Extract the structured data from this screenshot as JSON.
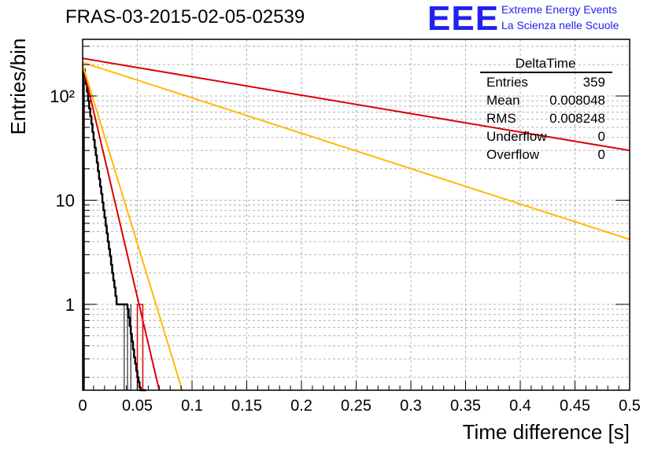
{
  "title": "FRAS-03-2015-02-05-02539",
  "logo": {
    "text": "EEE",
    "line1": "Extreme Energy Events",
    "line2": "La Scienza nelle Scuole",
    "color": "#2222ee"
  },
  "stats_box": {
    "name": "DeltaTime",
    "rows": [
      {
        "label": "Entries",
        "value": "359"
      },
      {
        "label": "Mean",
        "value": "0.008048"
      },
      {
        "label": "RMS",
        "value": "0.008248"
      },
      {
        "label": "Underflow",
        "value": "0"
      },
      {
        "label": "Overflow",
        "value": "0"
      }
    ]
  },
  "chart_data": {
    "type": "line",
    "title": "FRAS-03-2015-02-05-02539",
    "xlabel": "Time difference [s]",
    "ylabel": "Entries/bin",
    "xlim": [
      0,
      0.5
    ],
    "ylim": [
      0.15,
      350
    ],
    "yscale": "log",
    "grid": true,
    "x_ticks": [
      "0",
      "0.05",
      "0.1",
      "0.15",
      "0.2",
      "0.25",
      "0.3",
      "0.35",
      "0.4",
      "0.45",
      "0.5"
    ],
    "y_ticks": [
      "1",
      "10",
      "10²"
    ],
    "histogram": {
      "color": "#000000",
      "x": [
        0.001,
        0.002,
        0.003,
        0.004,
        0.005,
        0.006,
        0.007,
        0.008,
        0.009,
        0.01,
        0.011,
        0.012,
        0.013,
        0.014,
        0.015,
        0.016,
        0.017,
        0.018,
        0.019,
        0.02,
        0.021,
        0.022,
        0.023,
        0.024,
        0.025,
        0.026,
        0.027,
        0.028,
        0.029,
        0.03,
        0.031,
        0.032,
        0.033,
        0.034,
        0.035,
        0.036,
        0.037,
        0.038,
        0.039,
        0.04,
        0.041,
        0.042,
        0.043,
        0.044,
        0.045,
        0.046,
        0.047,
        0.048,
        0.049,
        0.05,
        0.051,
        0.052,
        0.053,
        0.054,
        0.055,
        0.056,
        0.057,
        0.058
      ],
      "y": [
        180,
        155,
        130,
        110,
        90,
        76,
        64,
        54,
        45,
        38,
        32,
        27,
        23,
        19,
        16,
        13.5,
        11.5,
        9.5,
        8,
        6.8,
        5.7,
        4.8,
        4,
        3.4,
        2.9,
        2.4,
        2,
        1.7,
        1.45,
        1.2,
        1,
        1,
        1,
        1,
        1,
        1,
        1,
        1,
        1,
        1,
        0.9,
        0.75,
        0.62,
        0.52,
        0.44,
        0.37,
        0.31,
        0.27,
        0.23,
        0.2,
        0.18,
        0.16,
        0.15,
        0.15,
        0.15,
        0.15,
        0.15,
        0.15
      ]
    },
    "spikes": {
      "color": "#000000",
      "x": [
        0.038,
        0.041,
        0.044,
        0.05,
        0.055
      ]
    },
    "series": [
      {
        "color": "#dd0000",
        "x": [
          0.0,
          0.07
        ],
        "y": [
          200,
          0.15
        ]
      },
      {
        "color": "#ffbb00",
        "x": [
          0.0,
          0.091
        ],
        "y": [
          200,
          0.15
        ]
      },
      {
        "color": "#ffbb00",
        "x": [
          0.0,
          0.5
        ],
        "y": [
          210,
          4.2
        ]
      },
      {
        "color": "#dd0000",
        "x": [
          0.0,
          0.5
        ],
        "y": [
          230,
          30
        ]
      }
    ],
    "highlight_box": {
      "color": "#dd0000",
      "x": [
        0.05,
        0.055
      ],
      "y": [
        0.15,
        1
      ]
    }
  }
}
